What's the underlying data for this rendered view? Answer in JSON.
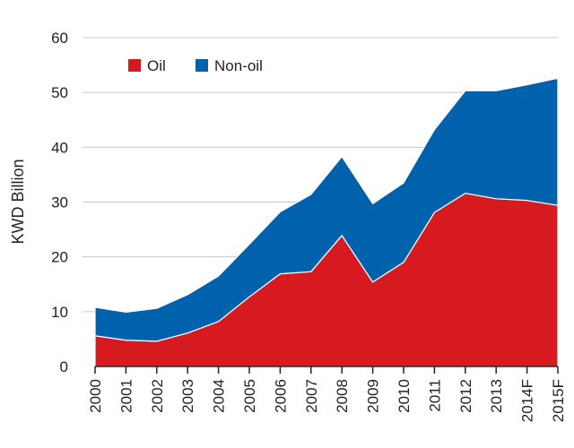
{
  "chart_data": {
    "type": "area",
    "stacked": true,
    "title": "",
    "xlabel": "",
    "ylabel": "KWD Billion",
    "ylim": [
      0,
      60
    ],
    "yticks": [
      0,
      10,
      20,
      30,
      40,
      50,
      60
    ],
    "grid": "horizontal",
    "legend_position": "top-left",
    "categories": [
      "2000",
      "2001",
      "2002",
      "2003",
      "2004",
      "2005",
      "2006",
      "2007",
      "2008",
      "2009",
      "2010",
      "2011",
      "2012",
      "2013",
      "2014F",
      "2015F"
    ],
    "series": [
      {
        "name": "Oil",
        "color": "#d71920",
        "values": [
          5.6,
          4.8,
          4.6,
          6.1,
          8.2,
          12.7,
          16.9,
          17.3,
          23.9,
          15.4,
          19.0,
          28.1,
          31.6,
          30.6,
          30.3,
          29.4
        ]
      },
      {
        "name": "Non-oil",
        "color": "#0062ad",
        "values": [
          5.2,
          5.1,
          6.0,
          7.0,
          8.3,
          9.6,
          11.3,
          14.1,
          14.4,
          14.3,
          14.5,
          15.1,
          18.7,
          19.7,
          21.1,
          23.2
        ]
      }
    ]
  }
}
